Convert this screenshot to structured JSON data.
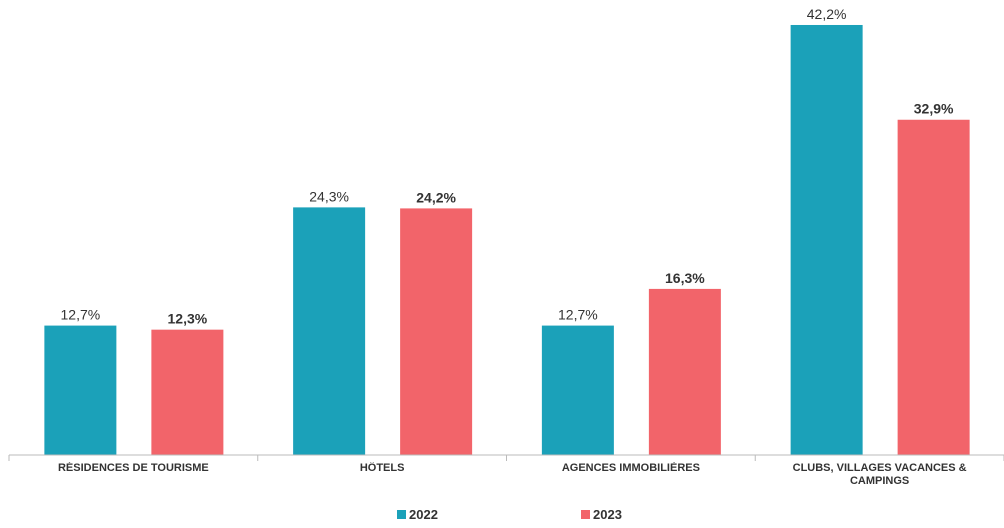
{
  "chart_data": {
    "type": "bar",
    "categories": [
      "RÉSIDENCES DE TOURISME",
      "HÔTELS",
      "AGENCES IMMOBILIÈRES",
      "CLUBS, VILLAGES VACANCES & CAMPINGS"
    ],
    "series": [
      {
        "name": "2022",
        "color": "#1ba1b9",
        "values": [
          12.7,
          24.3,
          12.7,
          42.2
        ],
        "value_labels": [
          "12,7%",
          "24,3%",
          "12,7%",
          "42,2%"
        ]
      },
      {
        "name": "2023",
        "color": "#f2646a",
        "values": [
          12.3,
          24.2,
          16.3,
          32.9
        ],
        "value_labels": [
          "12,3%",
          "24,2%",
          "16,3%",
          "32,9%"
        ]
      }
    ],
    "ylim": [
      0,
      44.5
    ]
  }
}
